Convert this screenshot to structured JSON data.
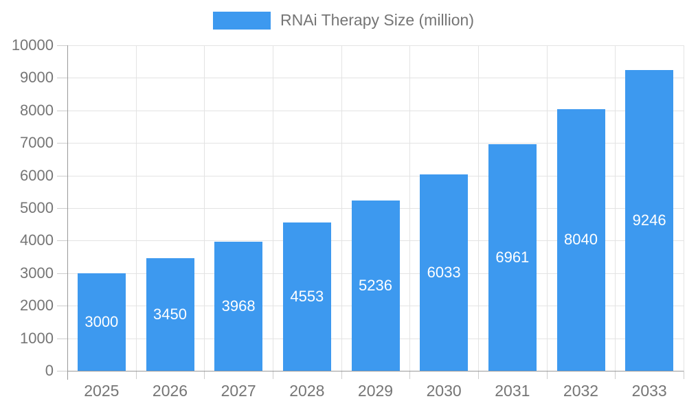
{
  "legend": {
    "label": "RNAi Therapy Size (million)"
  },
  "colors": {
    "bar": "#3D99EF",
    "bar_label": "#FFFFFF",
    "axis_line": "#999999",
    "tick": "#CCCCCC",
    "gridline": "#E3E3E3",
    "text": "#757575",
    "background": "#FFFFFF"
  },
  "chart_data": {
    "type": "bar",
    "title": "RNAi Therapy Size (million)",
    "categories": [
      "2025",
      "2026",
      "2027",
      "2028",
      "2029",
      "2030",
      "2031",
      "2032",
      "2033"
    ],
    "values": [
      3000,
      3450,
      3968,
      4553,
      5236,
      6033,
      6961,
      8040,
      9246
    ],
    "series": [
      {
        "name": "RNAi Therapy Size (million)",
        "values": [
          3000,
          3450,
          3968,
          4553,
          5236,
          6033,
          6961,
          8040,
          9246
        ]
      }
    ],
    "xlabel": "",
    "ylabel": "",
    "ylim": [
      0,
      10000
    ],
    "ytick_interval": 1000,
    "yticks": [
      0,
      1000,
      2000,
      3000,
      4000,
      5000,
      6000,
      7000,
      8000,
      9000,
      10000
    ],
    "grid": true,
    "legend_position": "top",
    "bar_value_labels": "inside-center"
  }
}
